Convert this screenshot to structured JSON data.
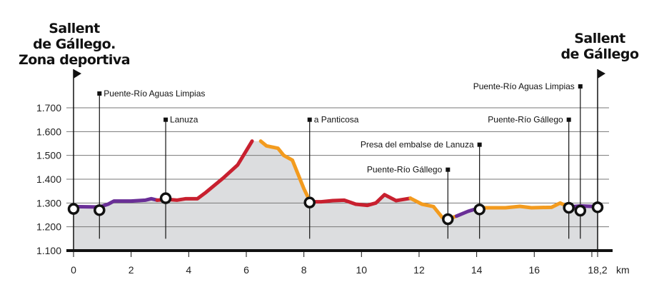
{
  "chart_data": {
    "type": "line",
    "title_start": [
      "Sallent",
      "de Gállego.",
      "Zona deportiva"
    ],
    "title_end": [
      "Sallent",
      "de Gállego"
    ],
    "xlabel": "km",
    "ylabel": "",
    "xlim": [
      0,
      18.2
    ],
    "ylim": [
      1100,
      1700
    ],
    "xticks": [
      "0",
      "2",
      "4",
      "6",
      "8",
      "10",
      "12",
      "14",
      "16",
      "18,2"
    ],
    "xtick_values": [
      0,
      2,
      4,
      6,
      8,
      10,
      12,
      14,
      16,
      18.2
    ],
    "yticks": [
      "1.100",
      "1.200",
      "1.300",
      "1.400",
      "1.500",
      "1.600",
      "1.700"
    ],
    "ytick_values": [
      1100,
      1200,
      1300,
      1400,
      1500,
      1600,
      1700
    ],
    "grid": true,
    "colors": {
      "purple": "#6a2f97",
      "red": "#c8202f",
      "orange": "#f39b1e",
      "fill": "#dcdddf"
    },
    "segments": [
      {
        "color": "purple",
        "points": [
          [
            0,
            1285
          ],
          [
            0.9,
            1283
          ],
          [
            1.2,
            1295
          ],
          [
            1.4,
            1308
          ],
          [
            2,
            1308
          ],
          [
            2.5,
            1312
          ],
          [
            2.7,
            1318
          ],
          [
            2.9,
            1312
          ]
        ]
      },
      {
        "color": "red",
        "points": [
          [
            2.9,
            1312
          ],
          [
            3.3,
            1315
          ],
          [
            3.6,
            1312
          ],
          [
            3.9,
            1318
          ],
          [
            4.3,
            1318
          ],
          [
            4.6,
            1345
          ],
          [
            5.2,
            1405
          ],
          [
            5.7,
            1460
          ],
          [
            6.2,
            1560
          ]
        ]
      },
      {
        "color": "orange",
        "points": [
          [
            6.5,
            1560
          ],
          [
            6.7,
            1540
          ],
          [
            7.1,
            1530
          ],
          [
            7.3,
            1500
          ],
          [
            7.6,
            1480
          ],
          [
            7.8,
            1420
          ],
          [
            8,
            1360
          ],
          [
            8.2,
            1310
          ]
        ]
      },
      {
        "color": "red",
        "points": [
          [
            8.2,
            1305
          ],
          [
            8.6,
            1305
          ],
          [
            9,
            1310
          ],
          [
            9.4,
            1312
          ],
          [
            9.8,
            1295
          ],
          [
            10.2,
            1290
          ],
          [
            10.5,
            1300
          ],
          [
            10.8,
            1335
          ],
          [
            11.2,
            1310
          ],
          [
            11.7,
            1320
          ]
        ]
      },
      {
        "color": "orange",
        "points": [
          [
            11.7,
            1320
          ],
          [
            12.1,
            1295
          ],
          [
            12.5,
            1285
          ],
          [
            12.8,
            1240
          ],
          [
            13,
            1232
          ],
          [
            13.3,
            1245
          ]
        ]
      },
      {
        "color": "purple",
        "points": [
          [
            13.3,
            1245
          ],
          [
            13.7,
            1265
          ],
          [
            14.1,
            1280
          ]
        ]
      },
      {
        "color": "orange",
        "points": [
          [
            14.1,
            1280
          ],
          [
            15,
            1280
          ],
          [
            15.5,
            1286
          ],
          [
            15.9,
            1280
          ],
          [
            16.6,
            1282
          ],
          [
            16.9,
            1300
          ],
          [
            17.2,
            1283
          ]
        ]
      },
      {
        "color": "purple",
        "points": [
          [
            17.2,
            1283
          ],
          [
            17.6,
            1288
          ],
          [
            18.2,
            1285
          ]
        ]
      }
    ],
    "markers": [
      [
        0,
        1275
      ],
      [
        0.9,
        1270
      ],
      [
        3.2,
        1320
      ],
      [
        8.2,
        1302
      ],
      [
        13,
        1232
      ],
      [
        14.1,
        1273
      ],
      [
        17.2,
        1280
      ],
      [
        17.6,
        1268
      ],
      [
        18.2,
        1282
      ]
    ],
    "annotations": [
      {
        "label": "Puente-Río Aguas Limpias",
        "km": 0.9,
        "level": 1760,
        "side": "right"
      },
      {
        "label": "Lanuza",
        "km": 3.2,
        "level": 1650,
        "side": "right"
      },
      {
        "label": "a Panticosa",
        "km": 8.2,
        "level": 1650,
        "side": "right"
      },
      {
        "label": "Puente-Río Gállego",
        "km": 13,
        "level": 1440,
        "side": "left"
      },
      {
        "label": "Presa del embalse de Lanuza",
        "km": 14.1,
        "level": 1545,
        "side": "left"
      },
      {
        "label": "Puente-Río Gállego",
        "km": 17.2,
        "level": 1650,
        "side": "left"
      },
      {
        "label": "Puente-Río Aguas Limpias",
        "km": 17.6,
        "level": 1790,
        "side": "left"
      }
    ]
  }
}
